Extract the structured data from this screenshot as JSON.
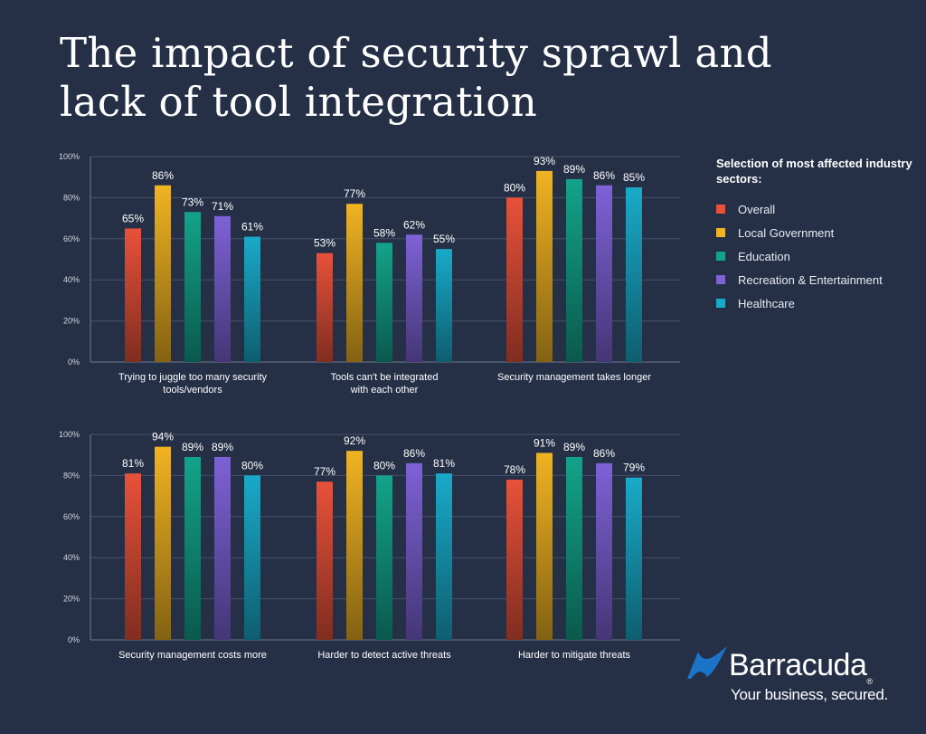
{
  "title": "The impact of security sprawl and lack of tool integration",
  "legend": {
    "title": "Selection of most affected industry sectors:",
    "items": [
      {
        "label": "Overall",
        "color": "#e8513a"
      },
      {
        "label": "Local Government",
        "color": "#f0b322"
      },
      {
        "label": "Education",
        "color": "#13a38a"
      },
      {
        "label": "Recreation & Entertainment",
        "color": "#7d62d6"
      },
      {
        "label": "Healthcare",
        "color": "#19aac9"
      }
    ]
  },
  "chart_data": [
    {
      "type": "bar",
      "ylim": [
        0,
        100
      ],
      "yticks": [
        "0%",
        "20%",
        "40%",
        "60%",
        "80%",
        "100%"
      ],
      "grid": true,
      "categories": [
        "Trying to juggle too many security tools/vendors",
        "Tools can't be integrated with each other",
        "Security management takes longer"
      ],
      "category_lines": [
        [
          "Trying to juggle too many security",
          "tools/vendors"
        ],
        [
          "Tools can't be integrated",
          "with each other"
        ],
        [
          "Security management takes longer"
        ]
      ],
      "series": [
        {
          "name": "Overall",
          "values": [
            65,
            53,
            80
          ]
        },
        {
          "name": "Local Government",
          "values": [
            86,
            77,
            93
          ]
        },
        {
          "name": "Education",
          "values": [
            73,
            58,
            89
          ]
        },
        {
          "name": "Recreation & Entertainment",
          "values": [
            71,
            62,
            86
          ]
        },
        {
          "name": "Healthcare",
          "values": [
            61,
            55,
            85
          ]
        }
      ]
    },
    {
      "type": "bar",
      "ylim": [
        0,
        100
      ],
      "yticks": [
        "0%",
        "20%",
        "40%",
        "60%",
        "80%",
        "100%"
      ],
      "grid": true,
      "categories": [
        "Security management costs more",
        "Harder to detect active threats",
        "Harder to mitigate threats"
      ],
      "category_lines": [
        [
          "Security management costs more"
        ],
        [
          "Harder to detect active threats"
        ],
        [
          "Harder to mitigate threats"
        ]
      ],
      "series": [
        {
          "name": "Overall",
          "values": [
            81,
            77,
            78
          ]
        },
        {
          "name": "Local Government",
          "values": [
            94,
            92,
            91
          ]
        },
        {
          "name": "Education",
          "values": [
            89,
            80,
            89
          ]
        },
        {
          "name": "Recreation & Entertainment",
          "values": [
            89,
            86,
            86
          ]
        },
        {
          "name": "Healthcare",
          "values": [
            80,
            81,
            79
          ]
        }
      ]
    }
  ],
  "brand": {
    "name": "Barracuda",
    "reg": "®",
    "tagline": "Your business, secured.",
    "logo_icon": "barracuda-fin-icon",
    "logo_color": "#1c74c9"
  }
}
